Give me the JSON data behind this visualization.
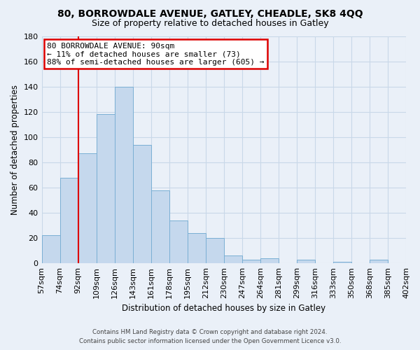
{
  "title": "80, BORROWDALE AVENUE, GATLEY, CHEADLE, SK8 4QQ",
  "subtitle": "Size of property relative to detached houses in Gatley",
  "xlabel": "Distribution of detached houses by size in Gatley",
  "ylabel": "Number of detached properties",
  "bar_labels": [
    "57sqm",
    "74sqm",
    "92sqm",
    "109sqm",
    "126sqm",
    "143sqm",
    "161sqm",
    "178sqm",
    "195sqm",
    "212sqm",
    "230sqm",
    "247sqm",
    "264sqm",
    "281sqm",
    "299sqm",
    "316sqm",
    "333sqm",
    "350sqm",
    "368sqm",
    "385sqm",
    "402sqm"
  ],
  "bar_values": [
    22,
    68,
    87,
    118,
    140,
    94,
    58,
    34,
    24,
    20,
    6,
    3,
    4,
    0,
    3,
    0,
    1,
    0,
    3,
    0
  ],
  "bar_color": "#c5d8ed",
  "bar_edge_color": "#7aafd4",
  "ylim": [
    0,
    180
  ],
  "yticks": [
    0,
    20,
    40,
    60,
    80,
    100,
    120,
    140,
    160,
    180
  ],
  "annotation_line1": "80 BORROWDALE AVENUE: 90sqm",
  "annotation_line2": "← 11% of detached houses are smaller (73)",
  "annotation_line3": "88% of semi-detached houses are larger (605) →",
  "footer_line1": "Contains HM Land Registry data © Crown copyright and database right 2024.",
  "footer_line2": "Contains public sector information licensed under the Open Government Licence v3.0.",
  "red_line_color": "#dd0000",
  "annotation_box_edge_color": "#dd0000",
  "grid_color": "#c8d8e8",
  "background_color": "#eaf0f8",
  "plot_bg_color": "#eaf0f8"
}
